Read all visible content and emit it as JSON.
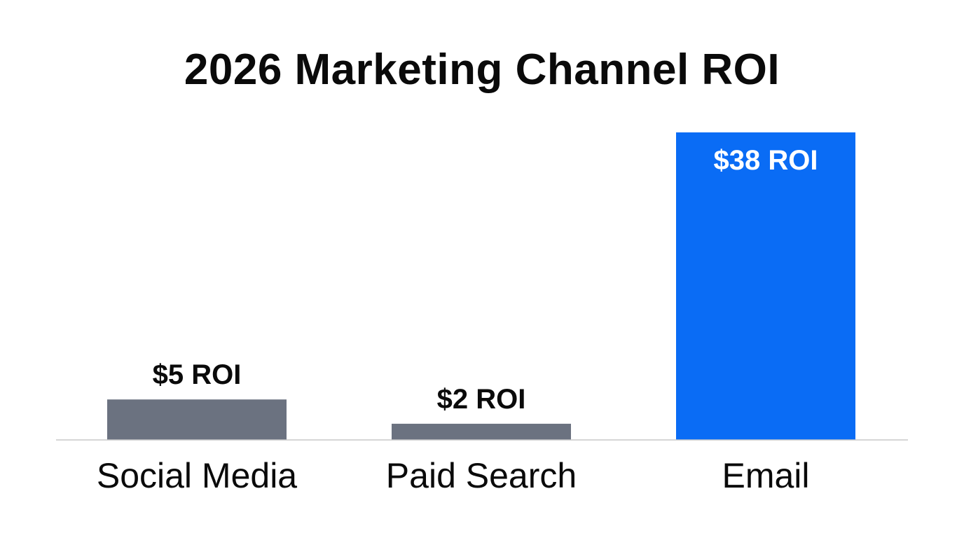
{
  "chart_data": {
    "type": "bar",
    "title": "2026 Marketing Channel ROI",
    "xlabel": "",
    "ylabel": "",
    "ylim": [
      0,
      38
    ],
    "grid": false,
    "categories": [
      "Social Media",
      "Paid Search",
      "Email"
    ],
    "values": [
      5,
      2,
      38
    ],
    "data_labels": [
      "$5 ROI",
      "$2 ROI",
      "$38 ROI"
    ],
    "colors": {
      "default_bar": "#6b7280",
      "highlight_bar": "#0a6cf5",
      "label_dark": "#0a0a0a",
      "label_light": "#ffffff",
      "axis": "#c8c8c8"
    },
    "highlight_index": 2
  }
}
